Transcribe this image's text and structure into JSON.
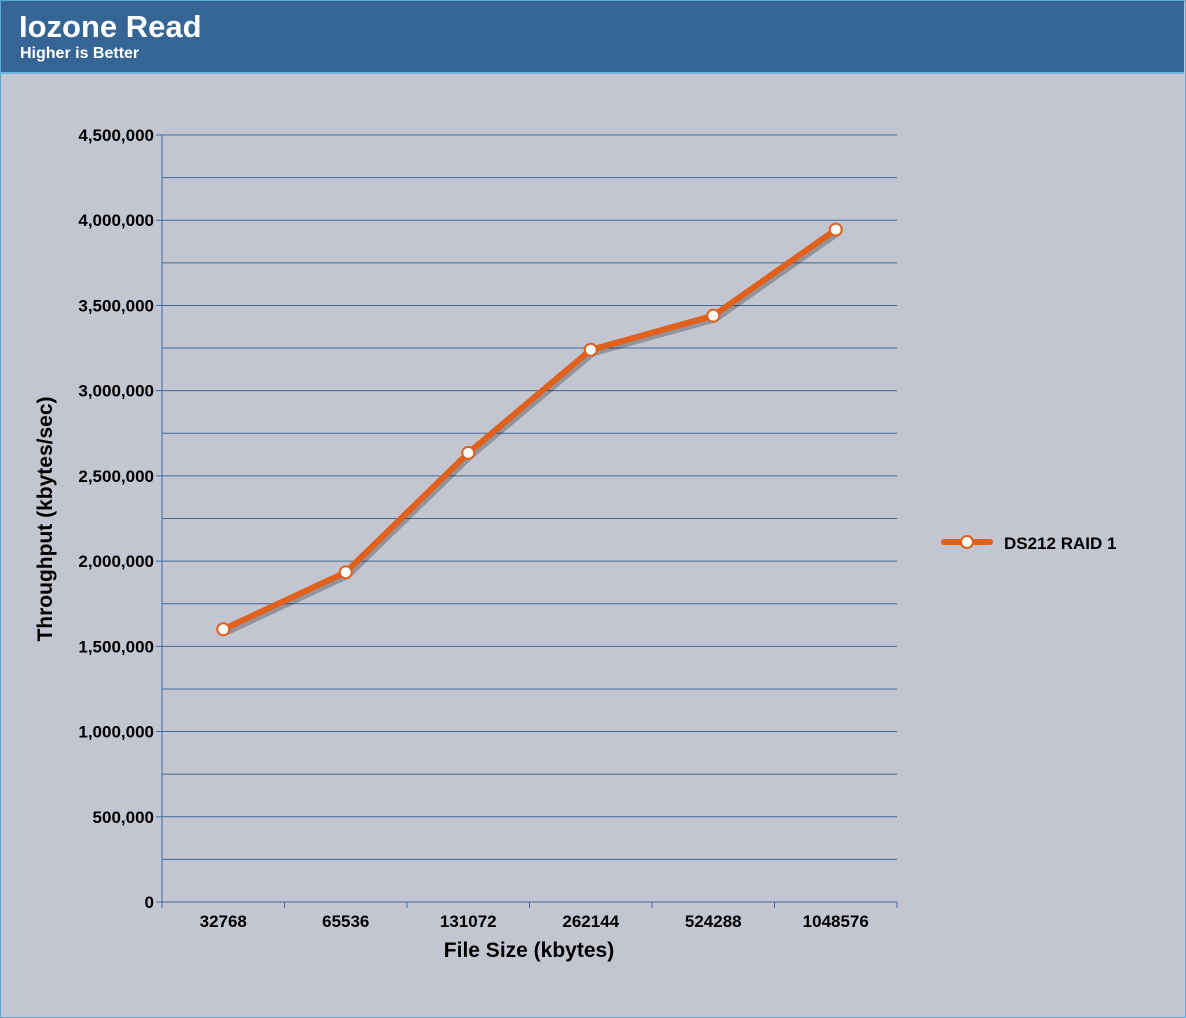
{
  "header": {
    "title": "Iozone Read",
    "subtitle": "Higher is Better"
  },
  "chart_data": {
    "type": "line",
    "title": "Iozone Read",
    "subtitle": "Higher is Better",
    "xlabel": "File Size (kbytes)",
    "ylabel": "Throughput (kbytes/sec)",
    "categories": [
      "32768",
      "65536",
      "131072",
      "262144",
      "524288",
      "1048576"
    ],
    "series": [
      {
        "name": "DS212 RAID 1",
        "values": [
          1600000,
          1935000,
          2635000,
          3240000,
          3440000,
          3945000
        ],
        "color": "#e0601c"
      }
    ],
    "ylim": [
      0,
      4500000
    ],
    "ytick_step": 500000,
    "ytick_labels": [
      "0",
      "500,000",
      "1,000,000",
      "1,500,000",
      "2,000,000",
      "2,500,000",
      "3,000,000",
      "3,500,000",
      "4,000,000",
      "4,500,000"
    ],
    "grid": true,
    "legend": "right",
    "colors": {
      "header_bg": "#356595",
      "plot_bg": "#c3c5d1",
      "gridline": "#3f6a9a",
      "line": "#e0601c",
      "marker_fill": "#ffffff"
    }
  }
}
